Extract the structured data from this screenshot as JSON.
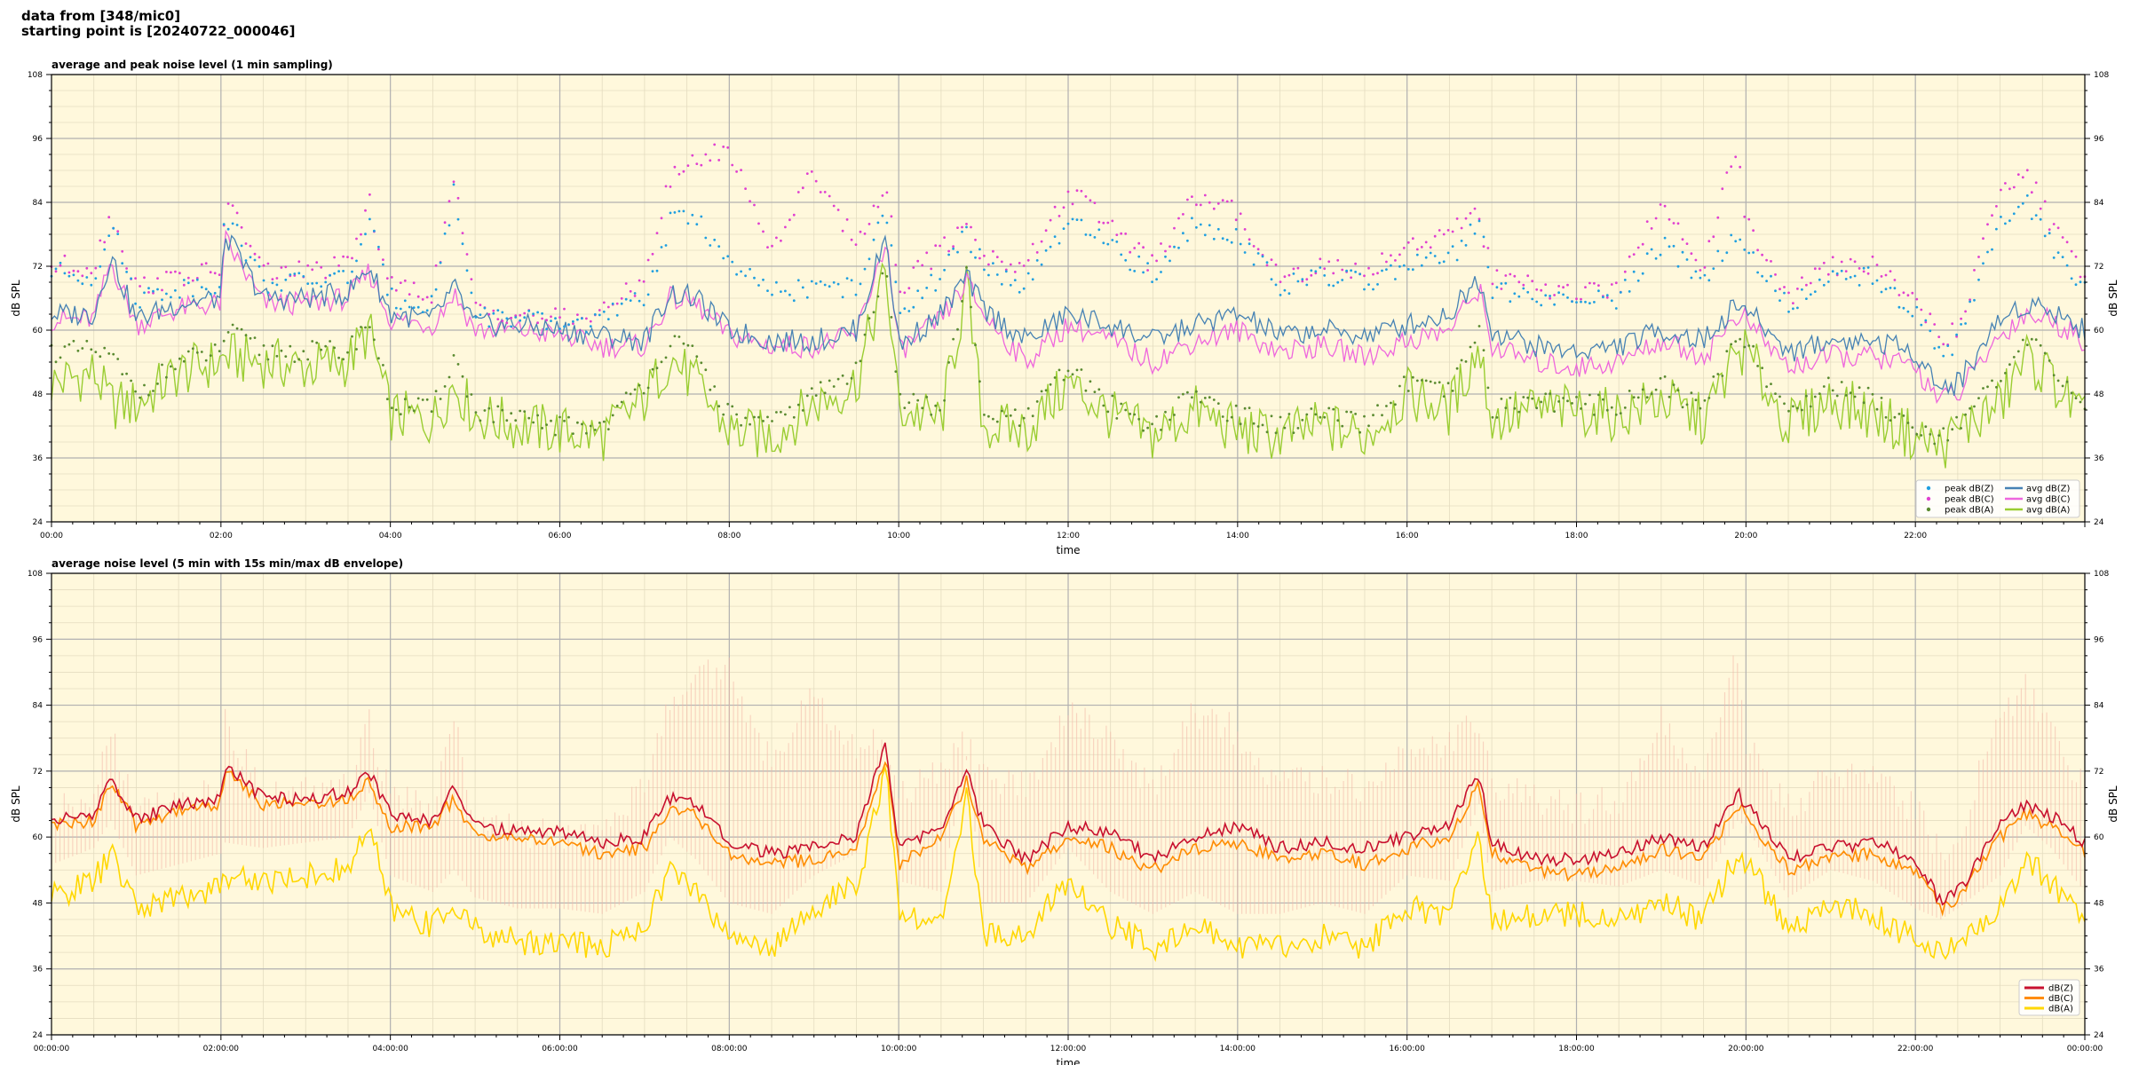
{
  "figure": {
    "supertitle_line1": "data from [348/mic0]",
    "supertitle_line2": "starting point is [20240722_000046]",
    "background_color": "#fff8dc"
  },
  "chart_data": [
    {
      "type": "scatter",
      "title": "average and peak noise level (1 min sampling)",
      "xlabel": "time",
      "ylabel": "dB SPL",
      "ylim": [
        24,
        108
      ],
      "yticks": [
        24,
        36,
        48,
        60,
        72,
        84,
        96,
        108
      ],
      "xlim_hours": [
        0,
        24
      ],
      "xtick_labels": [
        "00:00",
        "02:00",
        "04:00",
        "06:00",
        "08:00",
        "10:00",
        "12:00",
        "14:00",
        "16:00",
        "18:00",
        "20:00",
        "22:00"
      ],
      "grid": true,
      "legend_position": "lower-right",
      "legend": [
        {
          "label": "peak dB(Z)",
          "marker": "dot",
          "color": "#1f9fe0"
        },
        {
          "label": "peak dB(C)",
          "marker": "dot",
          "color": "#e040d0"
        },
        {
          "label": "peak dB(A)",
          "marker": "dot",
          "color": "#5a8a30"
        },
        {
          "label": "avg dB(Z)",
          "marker": "line",
          "color": "#4682b4"
        },
        {
          "label": "avg dB(C)",
          "marker": "line",
          "color": "#ee66dd"
        },
        {
          "label": "avg dB(A)",
          "marker": "line",
          "color": "#9acd32"
        }
      ],
      "x_hours": [
        0,
        0.5,
        0.7,
        1,
        1.5,
        2,
        2.05,
        2.5,
        3,
        3.5,
        3.75,
        4,
        4.5,
        4.75,
        5,
        5.5,
        6,
        6.5,
        7,
        7.3,
        7.6,
        8,
        8.5,
        9,
        9.5,
        9.85,
        10,
        10.5,
        10.8,
        11,
        11.5,
        12,
        12.5,
        13,
        13.5,
        14,
        14.5,
        15,
        15.5,
        16,
        16.5,
        16.85,
        17,
        17.5,
        18,
        18.5,
        19,
        19.5,
        19.9,
        20,
        20.5,
        21,
        21.5,
        22,
        22.3,
        22.5,
        23,
        23.3,
        23.6,
        24
      ],
      "series": [
        {
          "name": "avg dB(Z)",
          "color": "#4682b4",
          "values": [
            63,
            63,
            74,
            62,
            65,
            66,
            78,
            66,
            66,
            67,
            72,
            63,
            62,
            68,
            61,
            61,
            60,
            59,
            58,
            67,
            66,
            60,
            58,
            58,
            60,
            78,
            57,
            63,
            70,
            64,
            58,
            63,
            61,
            58,
            61,
            63,
            59,
            60,
            59,
            61,
            63,
            70,
            60,
            57,
            56,
            57,
            60,
            58,
            65,
            64,
            56,
            58,
            58,
            56,
            49,
            50,
            62,
            65,
            64,
            60
          ]
        },
        {
          "name": "avg dB(C)",
          "color": "#ee66dd",
          "values": [
            62,
            62,
            73,
            61,
            64,
            65,
            77,
            65,
            65,
            66,
            71,
            62,
            61,
            67,
            60,
            60,
            59,
            57,
            57,
            66,
            65,
            59,
            57,
            57,
            59,
            77,
            56,
            62,
            69,
            63,
            54,
            61,
            58,
            54,
            58,
            60,
            56,
            57,
            55,
            58,
            60,
            68,
            57,
            54,
            53,
            54,
            58,
            55,
            63,
            62,
            53,
            55,
            55,
            53,
            47,
            48,
            59,
            63,
            62,
            58
          ]
        },
        {
          "name": "avg dB(A)",
          "color": "#9acd32",
          "values": [
            50,
            52,
            46,
            46,
            52,
            54,
            55,
            54,
            53,
            54,
            60,
            44,
            43,
            50,
            44,
            42,
            41,
            40,
            47,
            55,
            50,
            41,
            40,
            46,
            50,
            71,
            45,
            43,
            68,
            42,
            41,
            50,
            44,
            40,
            45,
            41,
            40,
            42,
            40,
            48,
            45,
            57,
            43,
            45,
            45,
            44,
            47,
            43,
            56,
            56,
            42,
            47,
            44,
            40,
            38,
            41,
            46,
            55,
            51,
            43
          ]
        },
        {
          "name": "peak dB(Z)",
          "color": "#1f9fe0",
          "values": [
            71,
            70,
            80,
            66,
            68,
            69,
            82,
            69,
            69,
            70,
            80,
            66,
            65,
            86,
            63,
            62,
            61,
            62,
            66,
            80,
            82,
            72,
            67,
            68,
            68,
            82,
            64,
            70,
            78,
            72,
            68,
            80,
            76,
            70,
            80,
            78,
            68,
            70,
            69,
            72,
            73,
            80,
            68,
            66,
            65,
            66,
            76,
            70,
            78,
            76,
            64,
            70,
            70,
            64,
            55,
            58,
            80,
            84,
            76,
            68
          ]
        },
        {
          "name": "peak dB(C)",
          "color": "#e040d0",
          "values": [
            72,
            72,
            82,
            68,
            70,
            71,
            85,
            71,
            71,
            72,
            84,
            68,
            67,
            88,
            64,
            63,
            62,
            63,
            70,
            88,
            92,
            94,
            75,
            90,
            76,
            88,
            68,
            75,
            80,
            74,
            72,
            86,
            80,
            72,
            85,
            82,
            70,
            72,
            71,
            76,
            78,
            82,
            70,
            68,
            67,
            68,
            84,
            72,
            95,
            80,
            66,
            72,
            72,
            66,
            58,
            60,
            86,
            90,
            80,
            70
          ]
        },
        {
          "name": "peak dB(A)",
          "color": "#5a8a30",
          "values": [
            56,
            56,
            55,
            48,
            54,
            56,
            60,
            56,
            56,
            56,
            62,
            46,
            45,
            55,
            45,
            43,
            42,
            42,
            50,
            58,
            55,
            44,
            42,
            48,
            52,
            74,
            47,
            45,
            70,
            44,
            43,
            53,
            46,
            42,
            48,
            44,
            42,
            44,
            42,
            50,
            48,
            60,
            45,
            47,
            46,
            46,
            50,
            45,
            60,
            58,
            44,
            50,
            47,
            42,
            40,
            43,
            50,
            58,
            54,
            45
          ]
        }
      ]
    },
    {
      "type": "line",
      "title": "average noise level (5 min with 15s min/max dB envelope)",
      "xlabel": "time",
      "ylabel": "dB SPL",
      "ylim": [
        24,
        108
      ],
      "yticks": [
        24,
        36,
        48,
        60,
        72,
        84,
        96,
        108
      ],
      "xlim_hours": [
        0,
        24
      ],
      "xtick_labels": [
        "00:00:00",
        "02:00:00",
        "04:00:00",
        "06:00:00",
        "08:00:00",
        "10:00:00",
        "12:00:00",
        "14:00:00",
        "16:00:00",
        "18:00:00",
        "20:00:00",
        "22:00:00",
        "00:00:00"
      ],
      "grid": true,
      "legend_position": "lower-right",
      "legend": [
        {
          "label": "dB(Z)",
          "marker": "line",
          "color": "#c8102e"
        },
        {
          "label": "dB(C)",
          "marker": "line",
          "color": "#ff8c00"
        },
        {
          "label": "dB(A)",
          "marker": "line",
          "color": "#ffd700"
        }
      ],
      "envelope_color": "#f4b8a8",
      "x_hours": [
        0,
        0.5,
        0.7,
        1,
        1.5,
        2,
        2.05,
        2.5,
        3,
        3.5,
        3.75,
        4,
        4.5,
        4.75,
        5,
        5.5,
        6,
        6.5,
        7,
        7.3,
        7.6,
        8,
        8.5,
        9,
        9.5,
        9.85,
        10,
        10.5,
        10.8,
        11,
        11.5,
        12,
        12.5,
        13,
        13.5,
        14,
        14.5,
        15,
        15.5,
        16,
        16.5,
        16.85,
        17,
        17.5,
        18,
        18.5,
        19,
        19.5,
        19.9,
        20,
        20.5,
        21,
        21.5,
        22,
        22.3,
        22.5,
        23,
        23.3,
        23.6,
        24
      ],
      "series": [
        {
          "name": "dB(Z)",
          "color": "#c8102e",
          "values": [
            63,
            64,
            71,
            63,
            66,
            67,
            73,
            67,
            67,
            68,
            72,
            64,
            63,
            69,
            62,
            61,
            61,
            59,
            60,
            67,
            66,
            59,
            57,
            58,
            60,
            77,
            58,
            62,
            72,
            62,
            56,
            62,
            61,
            56,
            60,
            62,
            58,
            59,
            58,
            60,
            62,
            72,
            59,
            56,
            56,
            57,
            60,
            58,
            68,
            66,
            56,
            58,
            59,
            56,
            48,
            50,
            62,
            66,
            64,
            59
          ]
        },
        {
          "name": "dB(C)",
          "color": "#ff8c00",
          "values": [
            62,
            63,
            70,
            62,
            65,
            66,
            72,
            66,
            66,
            67,
            70,
            62,
            62,
            67,
            60,
            60,
            59,
            57,
            58,
            65,
            64,
            57,
            55,
            56,
            58,
            75,
            55,
            60,
            70,
            60,
            54,
            60,
            58,
            54,
            58,
            59,
            56,
            57,
            55,
            58,
            60,
            70,
            57,
            54,
            53,
            54,
            58,
            56,
            66,
            64,
            54,
            56,
            57,
            54,
            47,
            49,
            60,
            64,
            62,
            57
          ]
        },
        {
          "name": "dB(A)",
          "color": "#ffd700",
          "values": [
            49,
            52,
            57,
            47,
            49,
            51,
            53,
            52,
            53,
            54,
            62,
            47,
            44,
            48,
            43,
            41,
            41,
            40,
            44,
            54,
            50,
            42,
            40,
            47,
            51,
            72,
            46,
            44,
            68,
            42,
            42,
            52,
            44,
            40,
            44,
            40,
            40,
            42,
            40,
            47,
            46,
            60,
            44,
            46,
            46,
            45,
            48,
            45,
            57,
            56,
            43,
            48,
            46,
            41,
            39,
            41,
            47,
            56,
            52,
            44
          ]
        },
        {
          "name": "envelope max",
          "color": "#f4b8a8",
          "values": [
            68,
            70,
            82,
            68,
            70,
            71,
            84,
            71,
            71,
            72,
            84,
            70,
            68,
            84,
            66,
            64,
            63,
            64,
            72,
            88,
            92,
            94,
            76,
            90,
            78,
            82,
            70,
            76,
            80,
            74,
            72,
            86,
            80,
            72,
            86,
            82,
            72,
            74,
            72,
            78,
            80,
            84,
            72,
            70,
            68,
            70,
            84,
            74,
            96,
            80,
            68,
            74,
            74,
            68,
            60,
            62,
            86,
            90,
            82,
            72
          ]
        }
      ]
    }
  ]
}
